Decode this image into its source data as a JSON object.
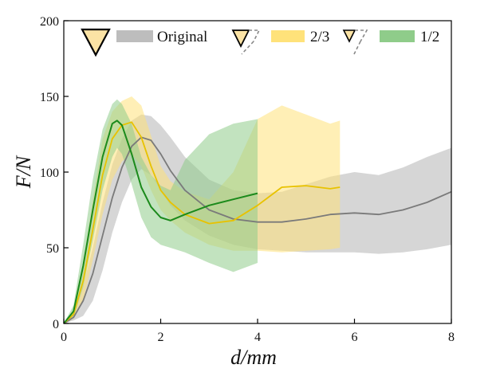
{
  "chart_data": {
    "type": "line",
    "title": "",
    "xlabel": "d/mm",
    "ylabel": "F/N",
    "xlim": [
      0,
      8
    ],
    "ylim": [
      0,
      200
    ],
    "xticks": [
      0,
      2,
      4,
      6,
      8
    ],
    "yticks": [
      0,
      50,
      100,
      150,
      200
    ],
    "grid": false,
    "legend_position": "top",
    "series": [
      {
        "name": "Original",
        "line_color": "#7a7a7a",
        "band_color": "#bdbdbd",
        "icon": "large-triangle",
        "x": [
          0,
          0.2,
          0.4,
          0.6,
          0.8,
          1.0,
          1.2,
          1.4,
          1.6,
          1.8,
          2.0,
          2.2,
          2.5,
          3.0,
          3.5,
          4.0,
          4.5,
          5.0,
          5.5,
          6.0,
          6.5,
          7.0,
          7.5,
          8.0
        ],
        "mean": [
          0,
          4,
          15,
          33,
          58,
          83,
          103,
          117,
          123,
          121,
          112,
          101,
          88,
          75,
          69,
          67,
          67,
          69,
          72,
          73,
          72,
          75,
          80,
          87
        ],
        "lower": [
          0,
          2,
          5,
          15,
          35,
          60,
          80,
          95,
          102,
          98,
          88,
          78,
          68,
          58,
          52,
          49,
          48,
          47,
          47,
          47,
          46,
          47,
          49,
          52
        ],
        "upper": [
          0,
          6,
          25,
          50,
          80,
          105,
          122,
          134,
          138,
          137,
          131,
          123,
          110,
          95,
          88,
          86,
          87,
          92,
          97,
          100,
          98,
          103,
          110,
          116
        ]
      },
      {
        "name": "2/3",
        "line_color": "#e8c200",
        "band_color": "#ffe27a",
        "icon": "medium-triangle",
        "x": [
          0,
          0.2,
          0.4,
          0.6,
          0.8,
          1.0,
          1.2,
          1.4,
          1.6,
          1.8,
          2.0,
          2.2,
          2.5,
          3.0,
          3.5,
          4.0,
          4.5,
          5.0,
          5.5,
          5.7
        ],
        "mean": [
          0,
          6,
          28,
          62,
          98,
          122,
          131,
          133,
          123,
          104,
          88,
          80,
          72,
          66,
          68,
          78,
          90,
          91,
          89,
          90
        ],
        "lower": [
          0,
          3,
          15,
          42,
          72,
          95,
          107,
          112,
          104,
          88,
          75,
          68,
          60,
          52,
          48,
          48,
          47,
          48,
          49,
          50
        ],
        "upper": [
          0,
          9,
          40,
          82,
          122,
          140,
          147,
          150,
          144,
          124,
          104,
          94,
          87,
          82,
          100,
          135,
          144,
          138,
          132,
          134
        ]
      },
      {
        "name": "1/2",
        "line_color": "#1b8a1b",
        "band_color": "#8fcc8a",
        "icon": "small-triangle",
        "x": [
          0,
          0.2,
          0.4,
          0.6,
          0.8,
          1.0,
          1.1,
          1.2,
          1.4,
          1.6,
          1.8,
          2.0,
          2.2,
          2.5,
          3.0,
          3.5,
          4.0
        ],
        "mean": [
          0,
          8,
          38,
          75,
          110,
          132,
          134,
          131,
          112,
          90,
          77,
          70,
          68,
          72,
          78,
          82,
          86
        ],
        "lower": [
          0,
          4,
          24,
          55,
          88,
          110,
          116,
          112,
          92,
          70,
          57,
          52,
          50,
          47,
          40,
          34,
          40
        ],
        "upper": [
          0,
          12,
          52,
          95,
          128,
          145,
          148,
          145,
          132,
          110,
          98,
          91,
          88,
          108,
          125,
          132,
          135
        ]
      }
    ]
  }
}
